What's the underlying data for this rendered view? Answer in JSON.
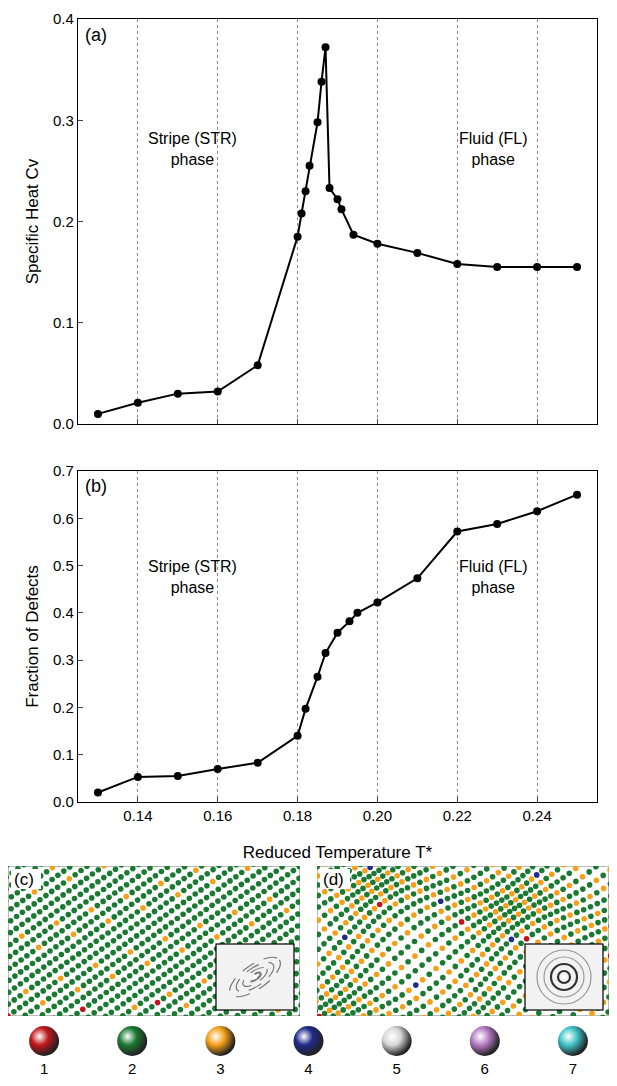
{
  "chart_data": [
    {
      "type": "line",
      "panel_label": "(a)",
      "x_title": "Reduced Temperature T*",
      "y_title": "Specific Heat Cv",
      "x": [
        0.13,
        0.14,
        0.15,
        0.16,
        0.17,
        0.18,
        0.181,
        0.182,
        0.183,
        0.185,
        0.186,
        0.187,
        0.188,
        0.19,
        0.191,
        0.194,
        0.2,
        0.21,
        0.22,
        0.23,
        0.24,
        0.25
      ],
      "values": [
        0.01,
        0.021,
        0.03,
        0.032,
        0.058,
        0.185,
        0.208,
        0.23,
        0.255,
        0.298,
        0.338,
        0.372,
        0.233,
        0.222,
        0.212,
        0.187,
        0.178,
        0.169,
        0.158,
        0.155,
        0.155,
        0.155
      ],
      "color": "#000000",
      "marker": "circle",
      "line_style": "solid",
      "annotations": [
        "Stripe (STR) phase",
        "Fluid (FL) phase"
      ],
      "xlim": [
        0.125,
        0.255
      ],
      "xticks": [
        0.14,
        0.16,
        0.18,
        {
          "value": 0.2,
          "label": "0.20"
        },
        0.22,
        0.24
      ],
      "ylim": [
        0,
        0.4
      ],
      "yticks": [
        {
          "value": 0,
          "label": "0.0"
        },
        0.1,
        0.2,
        0.3,
        0.4
      ],
      "grid": "x",
      "tick_labels": "y"
    },
    {
      "type": "line",
      "panel_label": "(b)",
      "x_title": "Reduced Temperature T*",
      "y_title": "Fraction of Defects",
      "x": [
        0.13,
        0.14,
        0.15,
        0.16,
        0.17,
        0.18,
        0.182,
        0.185,
        0.187,
        0.19,
        0.193,
        0.195,
        0.2,
        0.21,
        0.22,
        0.23,
        0.24,
        0.25
      ],
      "values": [
        0.02,
        0.053,
        0.055,
        0.07,
        0.083,
        0.14,
        0.197,
        0.265,
        0.315,
        0.358,
        0.382,
        0.4,
        0.422,
        0.473,
        0.572,
        0.588,
        0.615,
        0.65
      ],
      "color": "#000000",
      "marker": "circle",
      "line_style": "solid",
      "annotations": [
        "Stripe (STR) phase",
        "Fluid (FL) phase"
      ],
      "xlim": [
        0.125,
        0.255
      ],
      "xticks": [
        0.14,
        0.16,
        0.18,
        {
          "value": 0.2,
          "label": "0.20"
        },
        0.22,
        0.24
      ],
      "ylim": [
        0,
        0.7
      ],
      "yticks": [
        {
          "value": 0,
          "label": "0.0"
        },
        0.1,
        0.2,
        0.3,
        0.4,
        0.5,
        0.6,
        0.7
      ],
      "grid": "x",
      "tick_labels": true
    }
  ],
  "snapshots": [
    {
      "label": "(c)"
    },
    {
      "label": "(d)"
    }
  ],
  "color_legend": [
    {
      "label": "1",
      "color": "#c0161b"
    },
    {
      "label": "2",
      "color": "#1b7a32"
    },
    {
      "label": "3",
      "color": "#f5a01a"
    },
    {
      "label": "4",
      "color": "#1f2a8a"
    },
    {
      "label": "5",
      "color": "#d8d8d8"
    },
    {
      "label": "6",
      "color": "#b57cc4"
    },
    {
      "label": "7",
      "color": "#3fc4c8"
    }
  ]
}
